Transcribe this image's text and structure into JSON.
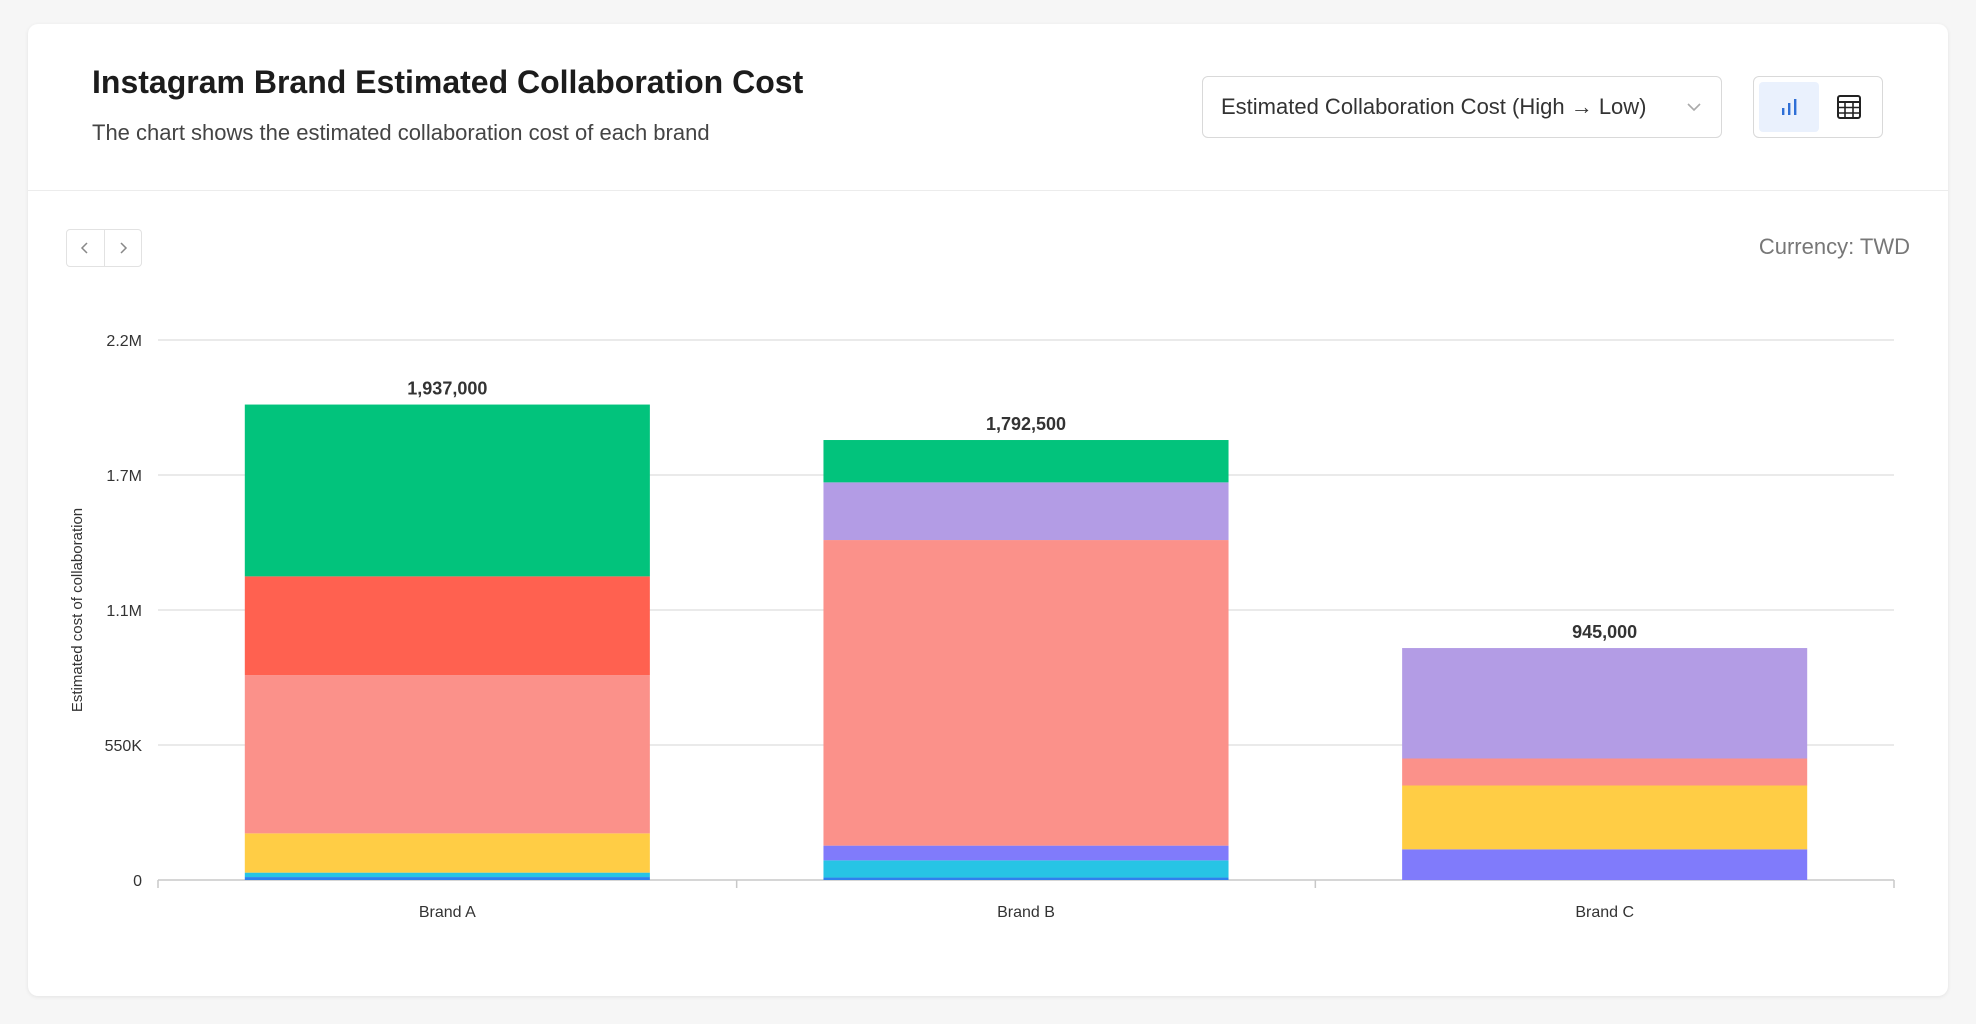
{
  "header": {
    "title": "Instagram Brand Estimated Collaboration Cost",
    "subtitle": "The chart shows the estimated collaboration cost of each brand",
    "sort_label": "Estimated Collaboration Cost (High → Low)"
  },
  "currency_label": "Currency: TWD",
  "icons": {
    "chart_view": "bar-chart-icon",
    "table_view": "table-icon",
    "prev": "chevron-left-icon",
    "next": "chevron-right-icon",
    "sort": "chevron-down-icon"
  },
  "colors": {
    "accent": "#2f6fd6",
    "green": "#02c37c",
    "red": "#ff6150",
    "salmon": "#fb918a",
    "yellow": "#ffcd45",
    "lavender": "#b39ce5",
    "periwinkle": "#807bfb",
    "cyan": "#27c4e5",
    "blue": "#2f80ed"
  },
  "chart_data": {
    "type": "bar",
    "stacked": true,
    "title": "",
    "xlabel": "",
    "ylabel": "Estimated cost of collaboration",
    "ylim": [
      0,
      2200000
    ],
    "yticks": [
      0,
      550000,
      1100000,
      1650000,
      2200000
    ],
    "ytick_labels": [
      "0",
      "550K",
      "1.1M",
      "1.7M",
      "2.2M"
    ],
    "grid": true,
    "categories": [
      "Brand A",
      "Brand B",
      "Brand C"
    ],
    "totals": [
      1937000,
      1792500,
      945000
    ],
    "total_labels": [
      "1,937,000",
      "1,792,500",
      "945,000"
    ],
    "stacks": [
      [
        {
          "color": "#2f80ed",
          "value": 12000
        },
        {
          "color": "#27c4e5",
          "value": 18000
        },
        {
          "color": "#ffcd45",
          "value": 160000
        },
        {
          "color": "#fb918a",
          "value": 645000
        },
        {
          "color": "#ff6150",
          "value": 402000
        },
        {
          "color": "#02c37c",
          "value": 700000
        }
      ],
      [
        {
          "color": "#2f80ed",
          "value": 10000
        },
        {
          "color": "#27c4e5",
          "value": 70000
        },
        {
          "color": "#807bfb",
          "value": 60000
        },
        {
          "color": "#fb918a",
          "value": 1245000
        },
        {
          "color": "#b39ce5",
          "value": 235000
        },
        {
          "color": "#02c37c",
          "value": 172500
        }
      ],
      [
        {
          "color": "#807bfb",
          "value": 125000
        },
        {
          "color": "#ffcd45",
          "value": 260000
        },
        {
          "color": "#fb918a",
          "value": 110000
        },
        {
          "color": "#b39ce5",
          "value": 450000
        }
      ]
    ]
  }
}
